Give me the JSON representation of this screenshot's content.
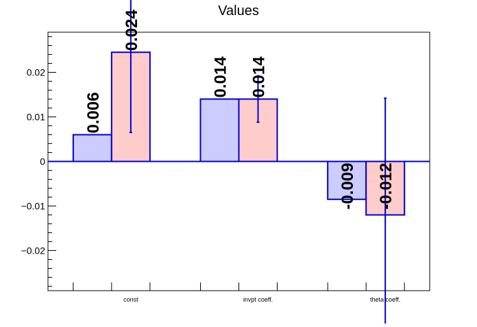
{
  "chart_data": {
    "type": "bar",
    "title": "Values",
    "xlabel": "",
    "ylabel": "",
    "categories": [
      "const",
      "invpt coeff.",
      "theta coeff."
    ],
    "series": [
      {
        "values": [
          0.006,
          0.014,
          -0.0085
        ],
        "labels": [
          "0.006",
          "0.014",
          "-0.009"
        ],
        "errors": [
          null,
          null,
          null
        ],
        "fill": "#ccccff",
        "stroke": "#0000cc"
      },
      {
        "values": [
          0.0245,
          0.014,
          -0.012
        ],
        "labels": [
          "0.024",
          "0.014",
          "-0.012"
        ],
        "errors": [
          0.018,
          0.0052,
          0.0262
        ],
        "fill": "#ffcccc",
        "stroke": "#0000cc"
      }
    ],
    "yticks": [
      {
        "value": -0.02,
        "label": "−0.02"
      },
      {
        "value": -0.01,
        "label": "−0.01"
      },
      {
        "value": 0,
        "label": "0"
      },
      {
        "value": 0.01,
        "label": "0.01"
      },
      {
        "value": 0.02,
        "label": "0.02"
      }
    ],
    "ylim": [
      -0.029,
      0.029
    ],
    "grid": false,
    "legend": "none",
    "axis_color": "#000000",
    "baseline_color": "#0000cc"
  }
}
